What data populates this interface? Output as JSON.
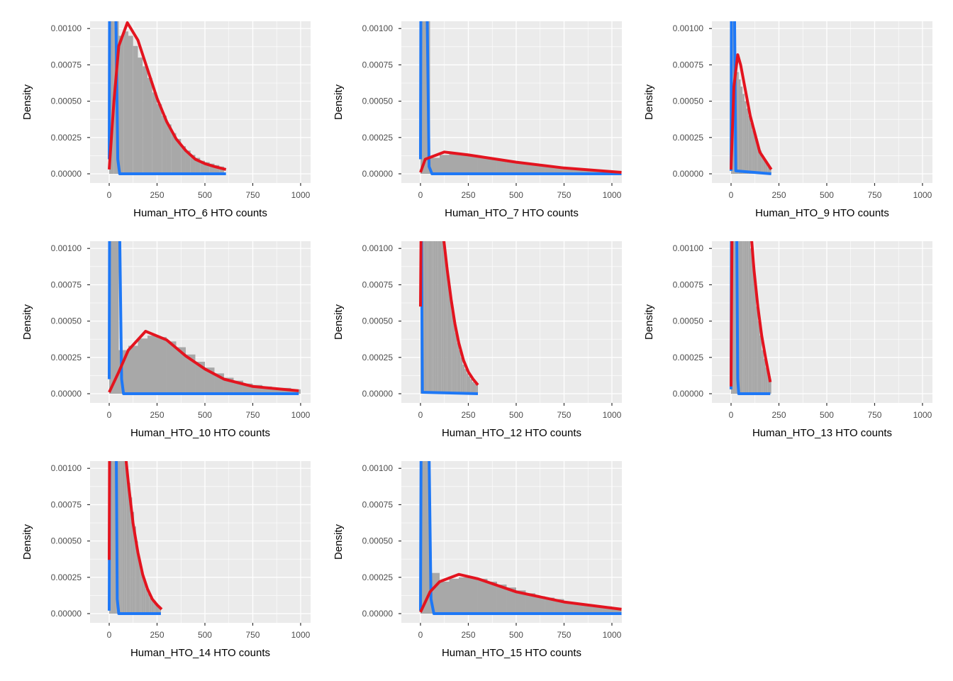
{
  "chart_data": [
    {
      "type": "histogram+line",
      "xlabel": "Human_HTO_6 HTO counts",
      "ylabel": "Density",
      "bin_width": 25,
      "hist": [
        0.0011,
        0.0011,
        0.00095,
        0.00098,
        0.00095,
        0.00088,
        0.0008,
        0.00074,
        0.00066,
        0.00056,
        0.00048,
        0.0004,
        0.00034,
        0.00028,
        0.00024,
        0.00019,
        0.00016,
        0.00013,
        0.00011,
        9e-05,
        8e-05,
        7e-05,
        6e-05,
        5e-05
      ],
      "red_curve": [
        [
          0,
          3e-05
        ],
        [
          25,
          0.0005
        ],
        [
          50,
          0.00088
        ],
        [
          95,
          0.00104
        ],
        [
          150,
          0.00092
        ],
        [
          200,
          0.00072
        ],
        [
          250,
          0.00052
        ],
        [
          300,
          0.00036
        ],
        [
          350,
          0.00024
        ],
        [
          400,
          0.00016
        ],
        [
          450,
          0.0001
        ],
        [
          500,
          7e-05
        ],
        [
          550,
          5e-05
        ],
        [
          610,
          3e-05
        ]
      ],
      "blue_curve": [
        [
          0,
          0.0001
        ],
        [
          2,
          0.0011
        ],
        [
          35,
          0.0011
        ],
        [
          45,
          0.0001
        ],
        [
          55,
          0
        ],
        [
          610,
          0
        ]
      ]
    },
    {
      "type": "histogram+line",
      "xlabel": "Human_HTO_7 HTO counts",
      "ylabel": "Density",
      "bin_width": 50,
      "hist": [
        0.0011,
        0.00011,
        0.00013,
        0.00014,
        0.00014,
        0.00013,
        0.00012,
        0.00011,
        0.0001,
        9e-05,
        8e-05,
        7e-05,
        6e-05,
        5e-05,
        5e-05,
        4e-05,
        3e-05,
        3e-05,
        2e-05,
        2e-05,
        2e-05
      ],
      "red_curve": [
        [
          0,
          1e-05
        ],
        [
          25,
          0.0001
        ],
        [
          125,
          0.00015
        ],
        [
          250,
          0.00013
        ],
        [
          500,
          8e-05
        ],
        [
          750,
          4e-05
        ],
        [
          1050,
          1e-05
        ]
      ],
      "blue_curve": [
        [
          0,
          0.0001
        ],
        [
          2,
          0.0011
        ],
        [
          35,
          0.0011
        ],
        [
          45,
          5e-05
        ],
        [
          60,
          0
        ],
        [
          1050,
          0
        ]
      ]
    },
    {
      "type": "histogram+line",
      "xlabel": "Human_HTO_9 HTO counts",
      "ylabel": "Density",
      "bin_width": 10,
      "hist": [
        0.0011,
        0.0011,
        0.0008,
        0.0007,
        0.00065,
        0.0006,
        0.00055,
        0.0005,
        0.00045,
        0.0004,
        0.00035,
        0.0003,
        0.00026,
        0.00022,
        0.00019,
        0.00016,
        0.00013,
        0.0001,
        8e-05,
        6e-05,
        4e-05
      ],
      "red_curve": [
        [
          0,
          3e-05
        ],
        [
          15,
          0.0006
        ],
        [
          35,
          0.00082
        ],
        [
          50,
          0.00075
        ],
        [
          100,
          0.0004
        ],
        [
          150,
          0.00015
        ],
        [
          210,
          3e-05
        ]
      ],
      "blue_curve": [
        [
          0,
          2e-05
        ],
        [
          2,
          0.0011
        ],
        [
          18,
          0.0011
        ],
        [
          25,
          2e-05
        ],
        [
          210,
          0
        ]
      ]
    },
    {
      "type": "histogram+line",
      "xlabel": "Human_HTO_10 HTO counts",
      "ylabel": "Density",
      "bin_width": 50,
      "hist": [
        0.0011,
        0.0003,
        0.00033,
        0.00038,
        0.0004,
        0.00039,
        0.00036,
        0.00032,
        0.00027,
        0.00022,
        0.00018,
        0.00014,
        0.00011,
        9e-05,
        7e-05,
        6e-05,
        5e-05,
        4e-05,
        4e-05,
        3e-05
      ],
      "red_curve": [
        [
          0,
          1e-05
        ],
        [
          50,
          0.00015
        ],
        [
          100,
          0.0003
        ],
        [
          190,
          0.00043
        ],
        [
          300,
          0.00037
        ],
        [
          400,
          0.00026
        ],
        [
          500,
          0.00017
        ],
        [
          600,
          0.0001
        ],
        [
          750,
          5e-05
        ],
        [
          990,
          2e-05
        ]
      ],
      "blue_curve": [
        [
          0,
          0.0001
        ],
        [
          2,
          0.0011
        ],
        [
          55,
          0.0011
        ],
        [
          65,
          0.0001
        ],
        [
          75,
          0
        ],
        [
          990,
          0
        ]
      ]
    },
    {
      "type": "histogram+line",
      "xlabel": "Human_HTO_12 HTO counts",
      "ylabel": "Density",
      "bin_width": 10,
      "hist": [
        0.0011,
        0.0011,
        0.0011,
        0.0011,
        0.0011,
        0.0011,
        0.0011,
        0.0011,
        0.0011,
        0.0011,
        0.0011,
        0.0011,
        0.001,
        0.0009,
        0.0008,
        0.0007,
        0.0006,
        0.0005,
        0.00042,
        0.00035,
        0.0003,
        0.00025,
        0.0002,
        0.00017,
        0.00014,
        0.00012,
        0.0001,
        8e-05,
        7e-05,
        6e-05
      ],
      "red_curve": [
        [
          0,
          0.0006
        ],
        [
          3,
          0.0011
        ],
        [
          118,
          0.0011
        ],
        [
          140,
          0.00085
        ],
        [
          160,
          0.00065
        ],
        [
          180,
          0.00048
        ],
        [
          200,
          0.00035
        ],
        [
          225,
          0.00023
        ],
        [
          250,
          0.00015
        ],
        [
          275,
          0.0001
        ],
        [
          300,
          6e-05
        ]
      ],
      "blue_curve": [
        [
          0,
          0.0011
        ],
        [
          5,
          0.0011
        ],
        [
          10,
          1e-05
        ],
        [
          300,
          0
        ]
      ]
    },
    {
      "type": "histogram+line",
      "xlabel": "Human_HTO_13 HTO counts",
      "ylabel": "Density",
      "bin_width": 10,
      "hist": [
        0.0011,
        0.0011,
        0.0011,
        0.0011,
        0.0011,
        0.0011,
        0.0011,
        0.0011,
        0.0011,
        0.0011,
        0.001,
        0.0009,
        0.00075,
        0.0006,
        0.0005,
        0.0004,
        0.0003,
        0.00024,
        0.00018,
        0.00014,
        0.0001
      ],
      "red_curve": [
        [
          0,
          5e-05
        ],
        [
          5,
          0.0011
        ],
        [
          105,
          0.0011
        ],
        [
          120,
          0.00085
        ],
        [
          140,
          0.0006
        ],
        [
          160,
          0.0004
        ],
        [
          180,
          0.00025
        ],
        [
          205,
          8e-05
        ]
      ],
      "blue_curve": [
        [
          0,
          3e-05
        ],
        [
          2,
          0.0011
        ],
        [
          30,
          0.0011
        ],
        [
          35,
          0.0001
        ],
        [
          40,
          0
        ],
        [
          205,
          0
        ]
      ]
    },
    {
      "type": "histogram+line",
      "xlabel": "Human_HTO_14 HTO counts",
      "ylabel": "Density",
      "bin_width": 10,
      "hist": [
        0.0011,
        0.0011,
        0.0011,
        0.0011,
        0.0011,
        0.0011,
        0.0011,
        0.0011,
        0.0011,
        0.001,
        0.0009,
        0.0008,
        0.0007,
        0.0006,
        0.0005,
        0.0004,
        0.00033,
        0.00027,
        0.00022,
        0.00017,
        0.00014,
        0.00011,
        9e-05,
        8e-05,
        7e-05,
        6e-05,
        5e-05
      ],
      "red_curve": [
        [
          0,
          0.00037
        ],
        [
          2,
          0.0011
        ],
        [
          85,
          0.0011
        ],
        [
          100,
          0.0009
        ],
        [
          125,
          0.00062
        ],
        [
          150,
          0.00042
        ],
        [
          175,
          0.00027
        ],
        [
          200,
          0.00017
        ],
        [
          225,
          0.0001
        ],
        [
          250,
          6e-05
        ],
        [
          274,
          3e-05
        ]
      ],
      "blue_curve": [
        [
          0,
          2e-05
        ],
        [
          3,
          0.0011
        ],
        [
          37,
          0.0011
        ],
        [
          42,
          0.0001
        ],
        [
          50,
          0
        ],
        [
          270,
          0
        ]
      ]
    },
    {
      "type": "histogram+line",
      "xlabel": "Human_HTO_15 HTO counts",
      "ylabel": "Density",
      "bin_width": 50,
      "hist": [
        0.0011,
        0.00028,
        0.00022,
        0.00024,
        0.00025,
        0.00025,
        0.00024,
        0.00022,
        0.0002,
        0.00018,
        0.00016,
        0.00014,
        0.00012,
        0.00011,
        0.0001,
        8e-05,
        7e-05,
        6e-05,
        5e-05,
        5e-05,
        4e-05
      ],
      "red_curve": [
        [
          0,
          1e-05
        ],
        [
          50,
          0.00015
        ],
        [
          100,
          0.00022
        ],
        [
          200,
          0.00027
        ],
        [
          300,
          0.00024
        ],
        [
          500,
          0.00015
        ],
        [
          750,
          8e-05
        ],
        [
          1050,
          3e-05
        ]
      ],
      "blue_curve": [
        [
          0,
          2e-05
        ],
        [
          3,
          0.0011
        ],
        [
          45,
          0.0011
        ],
        [
          55,
          0.0001
        ],
        [
          70,
          0
        ],
        [
          1050,
          0
        ]
      ]
    }
  ],
  "axes": {
    "xlim": [
      -100,
      1052
    ],
    "ylim": [
      0,
      0.00105
    ],
    "x_ticks": [
      "0",
      "250",
      "500",
      "750",
      "1000"
    ],
    "x_tick_values": [
      0,
      250,
      500,
      750,
      1000
    ],
    "y_ticks": [
      "0.00000",
      "0.00025",
      "0.00050",
      "0.00075",
      "0.00100"
    ],
    "y_tick_values": [
      0,
      0.00025,
      0.0005,
      0.00075,
      0.001
    ],
    "grid": true
  },
  "colors": {
    "panel_bg": "#EBEBEB",
    "grid": "#FFFFFF",
    "hist": "#A8A8A8",
    "red_curve": "#E3141F",
    "blue_curve": "#1E78F6"
  }
}
